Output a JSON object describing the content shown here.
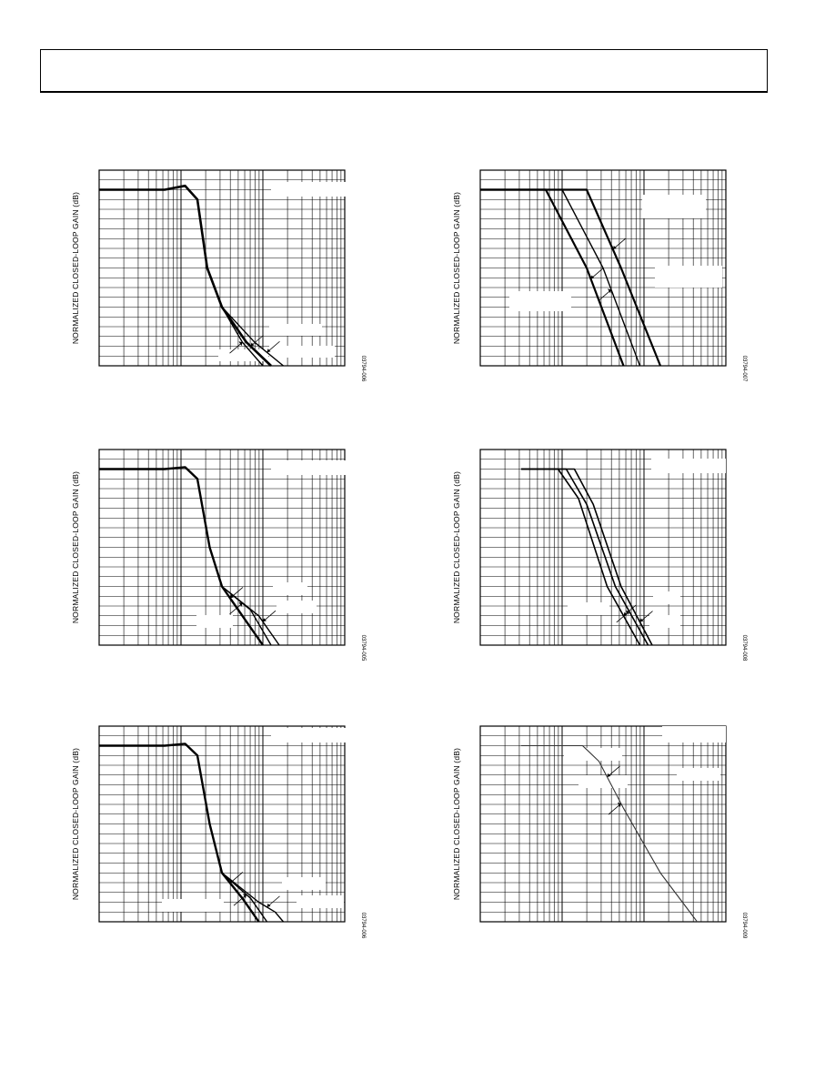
{
  "chart_data": [
    {
      "type": "line",
      "ylabel": "NORMALIZED CLOSED-LOOP GAIN (dB)",
      "figure_id": "03794-006",
      "x_scale": "log",
      "x_range_decades": [
        0,
        3
      ],
      "y_range": [
        0,
        1
      ],
      "series": [
        {
          "name": "",
          "width": 2.6,
          "points": [
            [
              0,
              0.9
            ],
            [
              0.8,
              0.9
            ],
            [
              1.05,
              0.92
            ],
            [
              1.2,
              0.85
            ],
            [
              1.32,
              0.5
            ],
            [
              1.5,
              0.3
            ],
            [
              1.8,
              0.12
            ],
            [
              2.1,
              0.0
            ]
          ],
          "arrow_at": 1.85
        },
        {
          "name": "",
          "width": 1.4,
          "points": [
            [
              0,
              0.9
            ],
            [
              0.8,
              0.9
            ],
            [
              1.05,
              0.92
            ],
            [
              1.2,
              0.85
            ],
            [
              1.32,
              0.5
            ],
            [
              1.5,
              0.3
            ],
            [
              1.75,
              0.12
            ],
            [
              2.0,
              0.0
            ]
          ],
          "arrow_at": 1.75
        },
        {
          "name": "",
          "width": 1.4,
          "points": [
            [
              0,
              0.9
            ],
            [
              0.8,
              0.9
            ],
            [
              1.05,
              0.92
            ],
            [
              1.2,
              0.85
            ],
            [
              1.32,
              0.5
            ],
            [
              1.5,
              0.3
            ],
            [
              1.9,
              0.12
            ],
            [
              2.25,
              0.0
            ]
          ],
          "arrow_at": 2.05
        }
      ]
    },
    {
      "type": "line",
      "ylabel": "NORMALIZED CLOSED-LOOP GAIN (dB)",
      "figure_id": "03794-007",
      "x_scale": "log",
      "x_range_decades": [
        0,
        3
      ],
      "y_range": [
        0,
        1
      ],
      "series": [
        {
          "name": "",
          "width": 2.2,
          "points": [
            [
              0,
              0.9
            ],
            [
              0.8,
              0.9
            ],
            [
              1.3,
              0.5
            ],
            [
              1.75,
              0.0
            ]
          ],
          "arrow_at": 1.35
        },
        {
          "name": "",
          "width": 1.4,
          "points": [
            [
              0,
              0.9
            ],
            [
              1.0,
              0.9
            ],
            [
              1.5,
              0.5
            ],
            [
              1.95,
              0.0
            ]
          ],
          "arrow_at": 1.6
        },
        {
          "name": "",
          "width": 2.2,
          "points": [
            [
              0,
              0.9
            ],
            [
              1.3,
              0.9
            ],
            [
              1.72,
              0.5
            ],
            [
              2.2,
              0.0
            ]
          ],
          "arrow_at": 1.62
        }
      ]
    },
    {
      "type": "line",
      "ylabel": "NORMALIZED CLOSED-LOOP GAIN (dB)",
      "figure_id": "03794-005",
      "x_scale": "log",
      "x_range_decades": [
        0,
        3
      ],
      "y_range": [
        0,
        1
      ],
      "series": [
        {
          "name": "",
          "width": 2.4,
          "points": [
            [
              0,
              0.9
            ],
            [
              0.8,
              0.9
            ],
            [
              1.05,
              0.91
            ],
            [
              1.2,
              0.85
            ],
            [
              1.35,
              0.5
            ],
            [
              1.5,
              0.3
            ],
            [
              1.75,
              0.15
            ],
            [
              2.0,
              0.0
            ]
          ],
          "arrow_at": 1.6
        },
        {
          "name": "",
          "width": 1.4,
          "points": [
            [
              0,
              0.9
            ],
            [
              0.8,
              0.9
            ],
            [
              1.05,
              0.91
            ],
            [
              1.2,
              0.85
            ],
            [
              1.35,
              0.5
            ],
            [
              1.5,
              0.3
            ],
            [
              1.85,
              0.18
            ],
            [
              2.1,
              0.0
            ]
          ],
          "arrow_at": 1.75
        },
        {
          "name": "",
          "width": 1.4,
          "points": [
            [
              0,
              0.9
            ],
            [
              0.8,
              0.9
            ],
            [
              1.05,
              0.91
            ],
            [
              1.2,
              0.85
            ],
            [
              1.35,
              0.5
            ],
            [
              1.5,
              0.3
            ],
            [
              1.95,
              0.15
            ],
            [
              2.2,
              0.0
            ]
          ],
          "arrow_at": 2.0
        }
      ]
    },
    {
      "type": "line",
      "ylabel": "NORMALIZED CLOSED-LOOP GAIN (dB)",
      "figure_id": "03794-008",
      "x_scale": "log",
      "x_range_decades": [
        0,
        3
      ],
      "y_range": [
        0,
        1
      ],
      "series": [
        {
          "name": "",
          "width": 1.6,
          "points": [
            [
              0.5,
              0.9
            ],
            [
              0.95,
              0.9
            ],
            [
              1.2,
              0.75
            ],
            [
              1.55,
              0.3
            ],
            [
              1.95,
              0.0
            ]
          ],
          "arrow_at": 1.75
        },
        {
          "name": "",
          "width": 1.6,
          "points": [
            [
              0.5,
              0.9
            ],
            [
              1.05,
              0.9
            ],
            [
              1.3,
              0.72
            ],
            [
              1.65,
              0.3
            ],
            [
              2.05,
              0.0
            ]
          ],
          "arrow_at": 1.82
        },
        {
          "name": "",
          "width": 1.6,
          "points": [
            [
              0.5,
              0.9
            ],
            [
              1.15,
              0.9
            ],
            [
              1.38,
              0.72
            ],
            [
              1.72,
              0.3
            ],
            [
              2.1,
              0.0
            ]
          ],
          "arrow_at": 1.95
        }
      ]
    },
    {
      "type": "line",
      "ylabel": "NORMALIZED CLOSED-LOOP GAIN (dB)",
      "figure_id": "03794-006",
      "x_scale": "log",
      "x_range_decades": [
        0,
        3
      ],
      "y_range": [
        0,
        1
      ],
      "series": [
        {
          "name": "",
          "width": 2.4,
          "points": [
            [
              0,
              0.9
            ],
            [
              0.8,
              0.9
            ],
            [
              1.05,
              0.91
            ],
            [
              1.2,
              0.85
            ],
            [
              1.35,
              0.5
            ],
            [
              1.5,
              0.25
            ],
            [
              1.75,
              0.12
            ],
            [
              1.95,
              0.0
            ]
          ],
          "arrow_at": 1.6
        },
        {
          "name": "",
          "width": 1.4,
          "points": [
            [
              0,
              0.9
            ],
            [
              0.8,
              0.9
            ],
            [
              1.05,
              0.91
            ],
            [
              1.2,
              0.85
            ],
            [
              1.35,
              0.5
            ],
            [
              1.5,
              0.25
            ],
            [
              1.85,
              0.12
            ],
            [
              2.05,
              0.0
            ]
          ],
          "arrow_at": 1.8
        },
        {
          "name": "",
          "width": 1.4,
          "points": [
            [
              0,
              0.9
            ],
            [
              0.8,
              0.9
            ],
            [
              1.05,
              0.91
            ],
            [
              1.2,
              0.85
            ],
            [
              1.35,
              0.5
            ],
            [
              1.5,
              0.25
            ],
            [
              1.95,
              0.1
            ],
            [
              2.15,
              0.05
            ],
            [
              2.25,
              0.0
            ]
          ],
          "arrow_at": 2.05
        }
      ]
    },
    {
      "type": "line",
      "ylabel": "NORMALIZED CLOSED-LOOP GAIN (dB)",
      "figure_id": "03794-009",
      "x_scale": "log",
      "x_range_decades": [
        0,
        3
      ],
      "y_range": [
        0,
        1
      ],
      "series": [
        {
          "name": "",
          "width": 1.0,
          "color": "#666666",
          "points": [
            [
              0.5,
              0.9
            ],
            [
              1.25,
              0.9
            ],
            [
              1.45,
              0.82
            ],
            [
              1.75,
              0.58
            ],
            [
              2.2,
              0.25
            ],
            [
              2.65,
              0.0
            ]
          ],
          "arrow_at": 1.55
        },
        {
          "name": "",
          "width": 1.0,
          "color": "#333333",
          "points": [
            [
              0.5,
              0.9
            ],
            [
              1.25,
              0.9
            ],
            [
              1.45,
              0.82
            ],
            [
              1.75,
              0.58
            ],
            [
              2.2,
              0.25
            ],
            [
              2.65,
              0.0
            ]
          ],
          "arrow_at": 1.72
        }
      ]
    }
  ]
}
